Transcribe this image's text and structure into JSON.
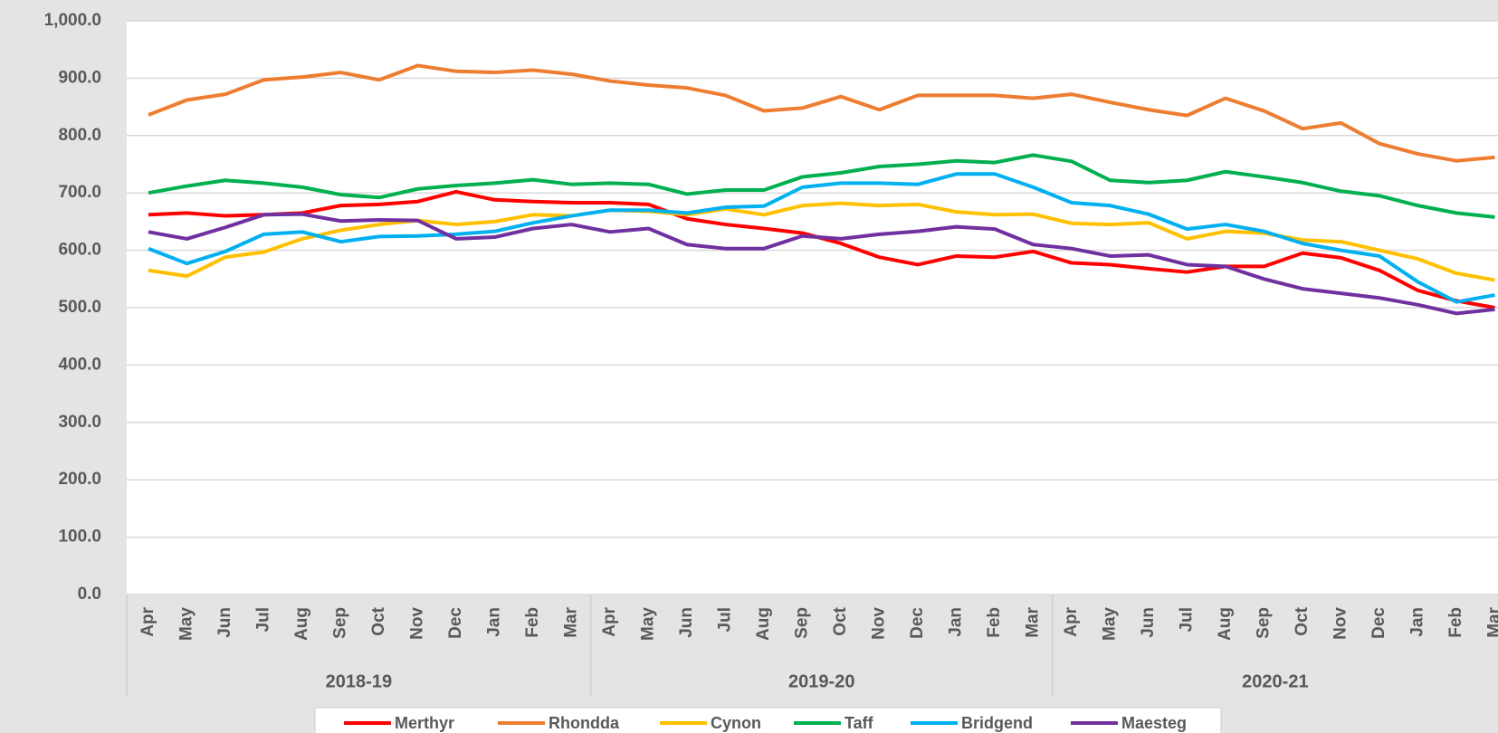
{
  "chart_data": {
    "type": "line",
    "categories": [
      "Apr",
      "May",
      "Jun",
      "Jul",
      "Aug",
      "Sep",
      "Oct",
      "Nov",
      "Dec",
      "Jan",
      "Feb",
      "Mar",
      "Apr",
      "May",
      "Jun",
      "Jul",
      "Aug",
      "Sep",
      "Oct",
      "Nov",
      "Dec",
      "Jan",
      "Feb",
      "Mar",
      "Apr",
      "May",
      "Jun",
      "Jul",
      "Aug",
      "Sep",
      "Oct",
      "Nov",
      "Dec",
      "Jan",
      "Feb",
      "Mar"
    ],
    "category_groups": [
      "2018-19",
      "2019-20",
      "2020-21"
    ],
    "series": [
      {
        "name": "Merthyr",
        "color": "#ff0000",
        "values": [
          662,
          665,
          660,
          662,
          665,
          678,
          680,
          685,
          702,
          688,
          685,
          683,
          683,
          680,
          655,
          645,
          638,
          630,
          612,
          588,
          575,
          590,
          588,
          598,
          578,
          575,
          568,
          562,
          572,
          572,
          595,
          587,
          565,
          530,
          512,
          500
        ]
      },
      {
        "name": "Rhondda",
        "color": "#ed7d31",
        "values": [
          836,
          862,
          872,
          897,
          902,
          910,
          897,
          922,
          912,
          910,
          914,
          907,
          895,
          888,
          883,
          870,
          843,
          848,
          868,
          845,
          870,
          870,
          870,
          865,
          872,
          858,
          845,
          835,
          865,
          843,
          812,
          822,
          786,
          768,
          756,
          762
        ]
      },
      {
        "name": "Cynon",
        "color": "#ffc000",
        "values": [
          565,
          555,
          588,
          597,
          620,
          635,
          645,
          652,
          645,
          650,
          662,
          660,
          670,
          668,
          662,
          672,
          662,
          678,
          682,
          678,
          680,
          667,
          662,
          663,
          647,
          645,
          648,
          620,
          633,
          630,
          618,
          615,
          600,
          585,
          560,
          548
        ]
      },
      {
        "name": "Taff",
        "color": "#00b050",
        "values": [
          700,
          712,
          722,
          717,
          710,
          697,
          692,
          707,
          713,
          717,
          723,
          715,
          717,
          715,
          698,
          705,
          705,
          728,
          735,
          746,
          750,
          756,
          753,
          766,
          755,
          722,
          718,
          722,
          737,
          728,
          718,
          703,
          695,
          678,
          665,
          658
        ]
      },
      {
        "name": "Bridgend",
        "color": "#00b0f0",
        "values": [
          603,
          577,
          598,
          628,
          632,
          615,
          624,
          625,
          628,
          633,
          648,
          660,
          670,
          670,
          665,
          675,
          677,
          710,
          717,
          717,
          715,
          733,
          733,
          710,
          683,
          678,
          663,
          637,
          645,
          633,
          612,
          600,
          590,
          545,
          510,
          522
        ]
      },
      {
        "name": "Maesteg",
        "color": "#7030a0",
        "values": [
          632,
          620,
          640,
          662,
          663,
          651,
          653,
          652,
          620,
          623,
          638,
          645,
          632,
          638,
          610,
          603,
          603,
          625,
          620,
          628,
          633,
          641,
          637,
          610,
          603,
          590,
          592,
          575,
          572,
          550,
          533,
          525,
          517,
          505,
          490,
          497
        ]
      }
    ],
    "ylim": [
      0,
      1000
    ],
    "yticks": [
      {
        "value": 0,
        "label": "0.0"
      },
      {
        "value": 100,
        "label": "100.0"
      },
      {
        "value": 200,
        "label": "200.0"
      },
      {
        "value": 300,
        "label": "300.0"
      },
      {
        "value": 400,
        "label": "400.0"
      },
      {
        "value": 500,
        "label": "500.0"
      },
      {
        "value": 600,
        "label": "600.0"
      },
      {
        "value": 700,
        "label": "700.0"
      },
      {
        "value": 800,
        "label": "800.0"
      },
      {
        "value": 900,
        "label": "900.0"
      },
      {
        "value": 1000,
        "label": "1,000.0"
      }
    ],
    "grid": true,
    "legend": "bottom"
  }
}
